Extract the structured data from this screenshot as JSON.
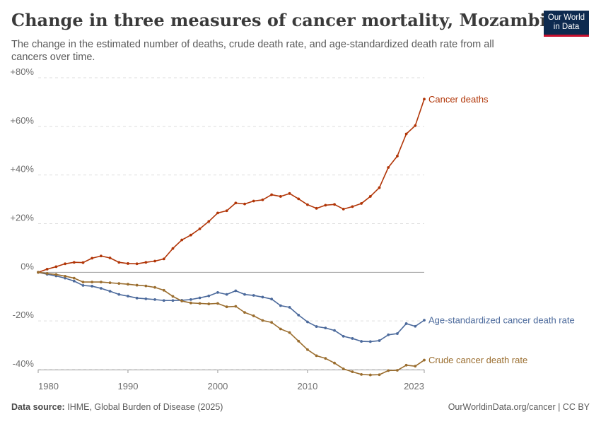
{
  "header": {
    "title": "Change in three measures of cancer mortality, Mozambique",
    "subtitle": "The change in the estimated number of deaths, crude death rate, and age-standardized death rate from all cancers over time.",
    "logo_line1": "Our World",
    "logo_line2": "in Data"
  },
  "footer": {
    "source_label": "Data source:",
    "source_text": "IHME, Global Burden of Disease (2025)",
    "attribution": "OurWorldinData.org/cancer | CC BY"
  },
  "colors": {
    "deaths": "#b13507",
    "age_standardized": "#4c6a9c",
    "crude": "#9a6d2e"
  },
  "chart_data": {
    "type": "line",
    "title": "Change in three measures of cancer mortality, Mozambique",
    "ylim": [
      -40,
      80
    ],
    "xlim": [
      1980,
      2023
    ],
    "y_ticks": [
      -40,
      -20,
      0,
      20,
      40,
      60,
      80
    ],
    "y_tick_labels": [
      "-40%",
      "-20%",
      "0%",
      "+20%",
      "+40%",
      "+60%",
      "+80%"
    ],
    "x_ticks": [
      1980,
      1990,
      2000,
      2010,
      2023
    ],
    "x_tick_labels": [
      "1980",
      "1990",
      "2000",
      "2010",
      "2023"
    ],
    "grid": true,
    "x": [
      1980,
      1981,
      1982,
      1983,
      1984,
      1985,
      1986,
      1987,
      1988,
      1989,
      1990,
      1991,
      1992,
      1993,
      1994,
      1995,
      1996,
      1997,
      1998,
      1999,
      2000,
      2001,
      2002,
      2003,
      2004,
      2005,
      2006,
      2007,
      2008,
      2009,
      2010,
      2011,
      2012,
      2013,
      2014,
      2015,
      2016,
      2017,
      2018,
      2019,
      2020,
      2021,
      2022,
      2023
    ],
    "series": [
      {
        "name": "Cancer deaths",
        "color": "#b13507",
        "values": [
          0,
          1.3,
          2.3,
          3.5,
          4.1,
          4.0,
          5.8,
          6.7,
          5.9,
          4.1,
          3.6,
          3.5,
          4.1,
          4.6,
          5.5,
          9.8,
          13.3,
          15.3,
          17.9,
          20.9,
          24.4,
          25.3,
          28.5,
          28.1,
          29.3,
          29.8,
          31.9,
          31.2,
          32.4,
          30.2,
          27.8,
          26.3,
          27.6,
          27.9,
          26.0,
          27.0,
          28.3,
          31.2,
          34.8,
          43.1,
          47.8,
          56.9,
          60.3,
          71.2
        ]
      },
      {
        "name": "Age-standardized cancer death rate",
        "color": "#4c6a9c",
        "values": [
          0,
          -0.8,
          -1.5,
          -2.4,
          -3.6,
          -5.4,
          -5.7,
          -6.6,
          -7.8,
          -9.1,
          -9.8,
          -10.6,
          -10.9,
          -11.2,
          -11.6,
          -11.6,
          -11.5,
          -11.2,
          -10.5,
          -9.7,
          -8.3,
          -9.1,
          -7.6,
          -9.1,
          -9.5,
          -10.2,
          -11.0,
          -13.7,
          -14.4,
          -17.6,
          -20.4,
          -22.3,
          -22.9,
          -23.9,
          -26.3,
          -27.2,
          -28.4,
          -28.5,
          -28.1,
          -25.7,
          -25.2,
          -21.1,
          -22.2,
          -19.7
        ]
      },
      {
        "name": "Crude cancer death rate",
        "color": "#9a6d2e",
        "values": [
          0,
          -0.5,
          -0.9,
          -1.6,
          -2.4,
          -4.0,
          -4.0,
          -4.0,
          -4.3,
          -4.6,
          -4.9,
          -5.3,
          -5.6,
          -6.2,
          -7.4,
          -9.9,
          -11.8,
          -12.6,
          -12.8,
          -13.0,
          -12.8,
          -14.2,
          -14.0,
          -16.5,
          -17.9,
          -19.8,
          -20.6,
          -23.3,
          -24.8,
          -28.3,
          -31.8,
          -34.3,
          -35.4,
          -37.3,
          -39.7,
          -40.9,
          -42.0,
          -42.2,
          -42.1,
          -40.4,
          -40.3,
          -38.2,
          -38.6,
          -36.1
        ]
      }
    ]
  }
}
